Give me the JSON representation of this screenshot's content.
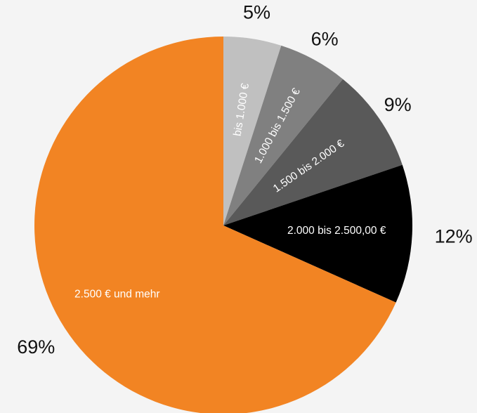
{
  "chart_data": {
    "type": "pie",
    "start": "top",
    "direction": "clockwise",
    "slices": [
      {
        "label": "bis 1.000 €",
        "value": 5,
        "value_label": "5%",
        "color": "#c0c0c0"
      },
      {
        "label": "1.000 bis 1.500 €",
        "value": 6,
        "value_label": "6%",
        "color": "#808080"
      },
      {
        "label": "1.500 bis 2.000 €",
        "value": 9,
        "value_label": "9%",
        "color": "#595959"
      },
      {
        "label": "2.000 bis 2.500,00 €",
        "value": 12,
        "value_label": "12%",
        "color": "#000000"
      },
      {
        "label": "2.500 € und mehr",
        "value": 69,
        "value_label": "69%",
        "color": "#f28423"
      }
    ]
  }
}
